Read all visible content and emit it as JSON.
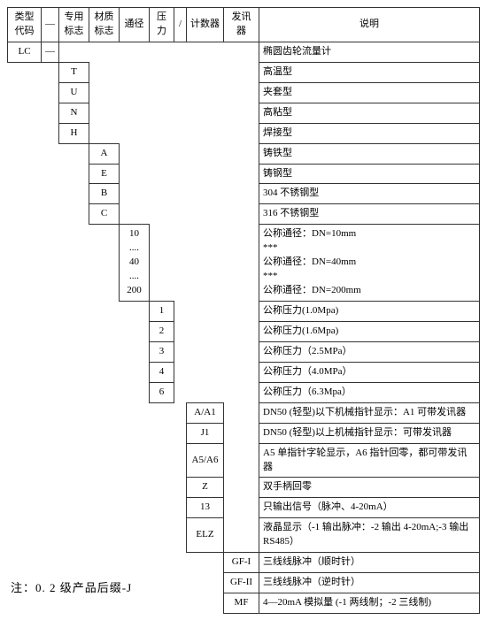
{
  "header": {
    "type_code": "类型代码",
    "dash": "—",
    "special_mark": "专用标志",
    "material_mark": "材质标志",
    "bore": "通径",
    "pressure": "压力",
    "slash": "/",
    "counter": "计数器",
    "transmitter": "发讯器",
    "description": "说明"
  },
  "rows": {
    "lc": {
      "col0": "LC",
      "col1": "—",
      "desc": "椭圆齿轮流量计"
    },
    "t": {
      "col2": "T",
      "desc": "高温型"
    },
    "u": {
      "col2": "U",
      "desc": "夹套型"
    },
    "n": {
      "col2": "N",
      "desc": "高粘型"
    },
    "h": {
      "col2": "H",
      "desc": "焊接型"
    },
    "a": {
      "col3": "A",
      "desc": "铸铁型"
    },
    "e": {
      "col3": "E",
      "desc": "铸钢型"
    },
    "b": {
      "col3": "B",
      "desc": "304 不锈钢型"
    },
    "c": {
      "col3": "C",
      "desc": "316 不锈钢型"
    },
    "dn": {
      "col4": "10\n....\n40\n....\n200",
      "desc": "公称通径：DN=10mm\n***\n公称通径：DN=40mm\n***\n公称通径：DN=200mm"
    },
    "p1": {
      "col5": "1",
      "desc": "公称压力(1.0Mpa)"
    },
    "p2": {
      "col5": "2",
      "desc": "公称压力(1.6Mpa)"
    },
    "p3": {
      "col5": "3",
      "desc": "公称压力（2.5MPa）"
    },
    "p4": {
      "col5": "4",
      "desc": "公称压力（4.0MPa）"
    },
    "p6": {
      "col5": "6",
      "desc": "公称压力（6.3Mpa）"
    },
    "aa1": {
      "col7": "A/A1",
      "desc": "DN50 (轻型)以下机械指针显示：A1 可带发讯器"
    },
    "j1": {
      "col7": "J1",
      "desc": "DN50 (轻型)以上机械指针显示：可带发讯器"
    },
    "a5a6": {
      "col7": "A5/A6",
      "desc": "A5 单指针字轮显示，A6 指针回零，都可带发讯器"
    },
    "z": {
      "col7": "Z",
      "desc": "双手柄回零"
    },
    "r13": {
      "col7": "13",
      "desc": "只输出信号（脉冲、4-20mA）"
    },
    "elz": {
      "col7": "ELZ",
      "desc": "液晶显示（-1 输出脉冲：-2 输出 4-20mA;-3 输出 RS485）"
    },
    "gf1": {
      "col8": "GF-I",
      "desc": "三线线脉冲（顺时针）"
    },
    "gf2": {
      "col8": "GF-II",
      "desc": "三线线脉冲（逆时针）"
    },
    "mf": {
      "col8": "MF",
      "desc": "4—20mA 模拟量 (-1 两线制；-2 三线制)"
    }
  },
  "note": "注：0. 2 级产品后缀-J"
}
